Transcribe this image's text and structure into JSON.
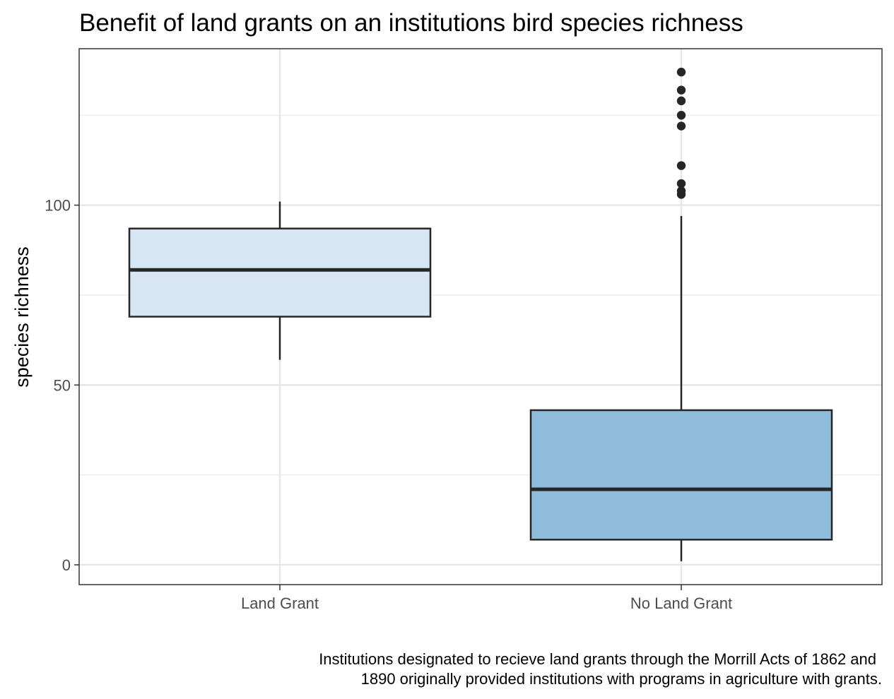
{
  "chart_data": {
    "type": "boxplot",
    "title": "Benefit of land grants on an institutions bird species richness",
    "xlabel": "",
    "ylabel": "species richness",
    "caption": [
      "Institutions designated to recieve land grants through the Morrill Acts of 1862 and",
      "1890 originally provided institutions with programs in agriculture with grants."
    ],
    "ylim": [
      -5.5,
      143.5
    ],
    "y_ticks": [
      0,
      50,
      100
    ],
    "y_tick_labels": [
      "0",
      "50",
      "100"
    ],
    "y_minor_ticks": [
      25,
      75,
      125
    ],
    "categories": [
      "Land Grant",
      "No Land Grant"
    ],
    "boxes": [
      {
        "category": "Land Grant",
        "fill": "#d6e6f4",
        "whisker_low": 57,
        "q1": 69,
        "median": 82,
        "q3": 93.5,
        "whisker_high": 101,
        "outliers": []
      },
      {
        "category": "No Land Grant",
        "fill": "#8fbcdb",
        "whisker_low": 1,
        "q1": 7,
        "median": 21,
        "q3": 43,
        "whisker_high": 97,
        "outliers": [
          103,
          104,
          106,
          111,
          122,
          125,
          129,
          132,
          137
        ]
      }
    ],
    "grid": true,
    "legend": "none"
  }
}
